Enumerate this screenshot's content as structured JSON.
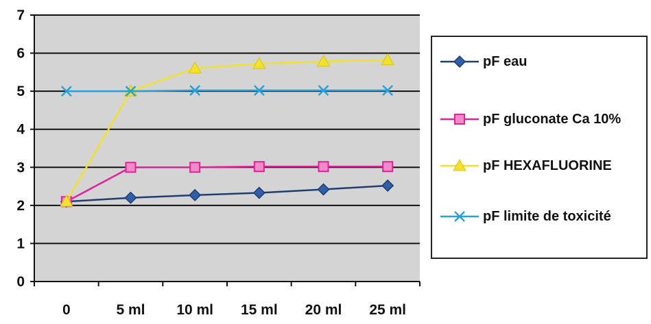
{
  "chart_data": {
    "type": "line",
    "categories": [
      "0",
      "5 ml",
      "10 ml",
      "15 ml",
      "20 ml",
      "25 ml"
    ],
    "ylim": [
      0,
      7
    ],
    "yticks": [
      0,
      1,
      2,
      3,
      4,
      5,
      6,
      7
    ],
    "grid": true,
    "legend_position": "right",
    "plot_background": "#d4d4d4",
    "series": [
      {
        "name": "pF eau",
        "values": [
          2.1,
          2.2,
          2.27,
          2.33,
          2.42,
          2.52
        ],
        "color": "#1f3d70",
        "marker": "diamond"
      },
      {
        "name": "pF gluconate Ca 10%",
        "values": [
          2.1,
          3.0,
          3.0,
          3.02,
          3.02,
          3.02
        ],
        "color": "#e0219a",
        "marker": "square"
      },
      {
        "name": "pF HEXAFLUORINE",
        "values": [
          2.1,
          5.0,
          5.6,
          5.72,
          5.78,
          5.82
        ],
        "color": "#f2e12a",
        "marker": "triangle"
      },
      {
        "name": "pF limite de toxicité",
        "values": [
          5.0,
          5.0,
          5.02,
          5.02,
          5.02,
          5.02
        ],
        "color": "#2aa0d8",
        "marker": "x"
      }
    ]
  }
}
